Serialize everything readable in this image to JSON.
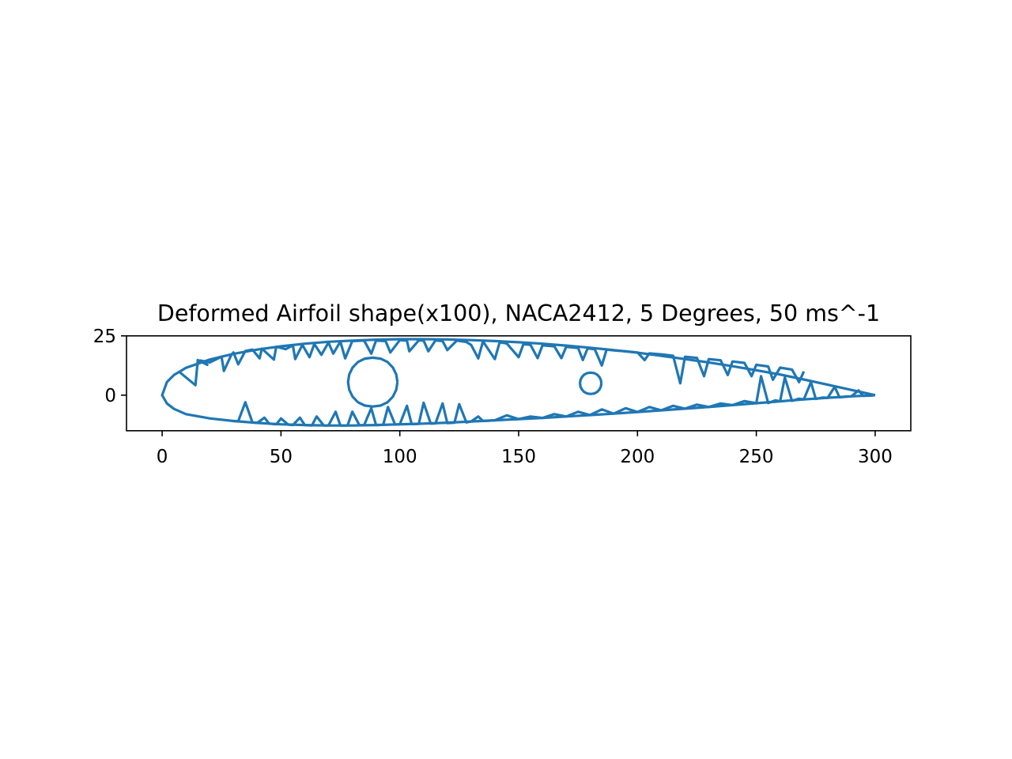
{
  "chart_data": {
    "type": "line",
    "title": "Deformed Airfoil shape(x100), NACA2412, 5 Degrees, 50 ms^-1",
    "xlabel": "",
    "ylabel": "",
    "xlim": [
      -15,
      315
    ],
    "ylim": [
      -15,
      25
    ],
    "xticks": [
      0,
      50,
      100,
      150,
      200,
      250,
      300
    ],
    "xtick_labels": [
      "0",
      "50",
      "100",
      "150",
      "200",
      "250",
      "300"
    ],
    "yticks": [
      0,
      25
    ],
    "ytick_labels": [
      "0",
      "25"
    ],
    "grid": false,
    "color": "#1f77b4",
    "series": [
      {
        "shape": "airfoil-outline",
        "x": [
          300,
          290,
          280,
          270,
          260,
          250,
          240,
          230,
          220,
          210,
          200,
          190,
          180,
          170,
          160,
          150,
          140,
          130,
          120,
          110,
          100,
          90,
          80,
          70,
          60,
          50,
          40,
          30,
          20,
          10,
          5,
          2,
          0,
          2,
          5,
          10,
          20,
          30,
          40,
          50,
          60,
          70,
          80,
          90,
          100,
          110,
          120,
          130,
          140,
          150,
          160,
          170,
          180,
          190,
          200,
          210,
          220,
          230,
          240,
          250,
          260,
          270,
          280,
          290,
          300
        ],
        "y": [
          0.0,
          2.2,
          4.4,
          6.6,
          8.7,
          10.5,
          12.2,
          13.8,
          15.2,
          16.6,
          17.9,
          19.0,
          20.0,
          20.9,
          21.7,
          22.3,
          22.8,
          23.2,
          23.5,
          23.6,
          23.6,
          23.4,
          23.0,
          22.5,
          21.7,
          20.6,
          19.2,
          17.4,
          15.0,
          11.5,
          8.5,
          5.5,
          0.0,
          -3.5,
          -5.8,
          -8.0,
          -9.8,
          -10.9,
          -11.7,
          -12.3,
          -12.6,
          -12.8,
          -12.8,
          -12.6,
          -12.3,
          -12.0,
          -11.6,
          -11.1,
          -10.6,
          -10.1,
          -9.6,
          -9.0,
          -8.4,
          -7.8,
          -7.1,
          -6.4,
          -5.7,
          -5.0,
          -4.2,
          -3.4,
          -2.6,
          -1.8,
          -1.1,
          -0.5,
          0.0
        ]
      },
      {
        "shape": "spar-hole-large",
        "x": [
          99.0,
          98.5,
          97.1,
          94.8,
          91.9,
          88.6,
          85.3,
          82.4,
          80.1,
          78.7,
          78.2,
          78.7,
          80.1,
          82.4,
          85.3,
          88.6,
          91.9,
          94.8,
          97.1,
          98.5,
          99.0
        ],
        "y": [
          5.5,
          8.7,
          11.6,
          14.0,
          15.4,
          15.8,
          15.4,
          14.0,
          11.6,
          8.7,
          5.5,
          2.3,
          -0.6,
          -3.0,
          -4.4,
          -4.8,
          -4.4,
          -3.0,
          -0.6,
          2.3,
          5.5
        ]
      },
      {
        "shape": "spar-hole-small",
        "x": [
          184.8,
          184.6,
          184.0,
          183.1,
          181.8,
          180.3,
          178.8,
          177.5,
          176.6,
          176.0,
          175.8,
          176.0,
          176.6,
          177.5,
          178.8,
          180.3,
          181.8,
          183.1,
          184.0,
          184.6,
          184.8
        ],
        "y": [
          5.0,
          6.4,
          7.6,
          8.6,
          9.3,
          9.5,
          9.3,
          8.6,
          7.6,
          6.4,
          5.0,
          3.6,
          2.4,
          1.4,
          0.7,
          0.5,
          0.7,
          1.4,
          2.4,
          3.6,
          5.0
        ]
      },
      {
        "shape": "upper-truss",
        "x": [
          7,
          14,
          15,
          19,
          16,
          20,
          25,
          26,
          29,
          30,
          32,
          35,
          38,
          41,
          42,
          47,
          48,
          52,
          55,
          56,
          59,
          62,
          64,
          67,
          70,
          72,
          75,
          77,
          80,
          85,
          88,
          90,
          94,
          96,
          100,
          103,
          104,
          108,
          110,
          112,
          115,
          118,
          120,
          124,
          128,
          130,
          133,
          135,
          140,
          142,
          145,
          150,
          152,
          155,
          158,
          160,
          165,
          168,
          170,
          175,
          177,
          179,
          182,
          185,
          187,
          190,
          195,
          200,
          203,
          205,
          210,
          215,
          218,
          220,
          225,
          228,
          230,
          235,
          238,
          240,
          245,
          248,
          250,
          255,
          257,
          260,
          265,
          268,
          270
        ],
        "y": [
          10.0,
          4.2,
          14.8,
          12.8,
          14.6,
          13.8,
          16.2,
          10.2,
          16.8,
          18.0,
          13.0,
          18.6,
          19.2,
          15.5,
          19.6,
          15.0,
          20.4,
          19.4,
          21.0,
          15.2,
          21.2,
          16.0,
          21.6,
          17.0,
          22.2,
          17.5,
          22.6,
          15.5,
          22.8,
          23.0,
          17.5,
          23.0,
          22.8,
          18.0,
          23.2,
          23.0,
          18.5,
          23.1,
          23.0,
          18.5,
          23.1,
          22.8,
          19.0,
          23.0,
          22.4,
          21.2,
          15.5,
          22.7,
          15.2,
          22.3,
          21.8,
          16.0,
          21.5,
          21.2,
          15.6,
          21.0,
          20.6,
          15.6,
          20.4,
          19.9,
          14.8,
          19.7,
          19.4,
          12.5,
          19.2,
          18.9,
          18.5,
          18.0,
          14.8,
          17.6,
          17.2,
          16.6,
          5.0,
          16.2,
          15.7,
          8.0,
          15.2,
          14.7,
          8.5,
          14.2,
          13.6,
          8.0,
          12.8,
          12.1,
          6.5,
          11.6,
          10.8,
          5.5,
          10.0
        ]
      },
      {
        "shape": "lower-truss",
        "x": [
          30,
          32,
          35,
          38,
          40,
          43,
          45,
          48,
          50,
          53,
          55,
          58,
          60,
          63,
          65,
          68,
          70,
          73,
          75,
          78,
          80,
          83,
          85,
          88,
          90,
          93,
          95,
          98,
          100,
          103,
          105,
          108,
          110,
          113,
          115,
          118,
          120,
          123,
          125,
          128,
          130,
          133,
          135,
          140,
          145,
          150,
          155,
          160,
          165,
          170,
          175,
          180,
          185,
          190,
          195,
          200,
          205,
          210,
          215,
          220,
          225,
          230,
          235,
          240,
          245,
          250,
          252,
          255,
          258,
          260,
          262,
          265,
          268,
          270,
          273,
          275,
          278,
          280,
          283,
          285,
          288,
          290,
          293,
          295,
          298,
          300
        ],
        "y": [
          -10.9,
          -11.0,
          -3.0,
          -11.5,
          -11.7,
          -9.5,
          -12.0,
          -12.3,
          -9.8,
          -12.4,
          -12.6,
          -9.5,
          -12.6,
          -12.8,
          -9.0,
          -12.8,
          -12.8,
          -7.0,
          -12.8,
          -12.8,
          -7.0,
          -12.7,
          -12.6,
          -5.5,
          -12.6,
          -12.5,
          -5.0,
          -12.4,
          -12.3,
          -4.5,
          -12.2,
          -12.1,
          -3.2,
          -12.0,
          -11.9,
          -3.5,
          -11.8,
          -11.6,
          -3.8,
          -11.5,
          -11.1,
          -9.0,
          -10.9,
          -10.6,
          -8.5,
          -10.1,
          -9.0,
          -9.6,
          -8.0,
          -9.0,
          -7.0,
          -8.4,
          -6.0,
          -7.8,
          -5.5,
          -7.1,
          -5.0,
          -6.4,
          -4.5,
          -5.7,
          -4.0,
          -5.0,
          -3.5,
          -4.2,
          -2.5,
          -3.4,
          8.0,
          -3.3,
          -2.2,
          -2.6,
          7.5,
          -2.4,
          -1.5,
          -1.8,
          5.5,
          -1.6,
          -1.0,
          -1.1,
          3.5,
          -0.9,
          -0.6,
          -0.5,
          2.0,
          -0.3,
          -0.2,
          0.0
        ]
      }
    ]
  }
}
